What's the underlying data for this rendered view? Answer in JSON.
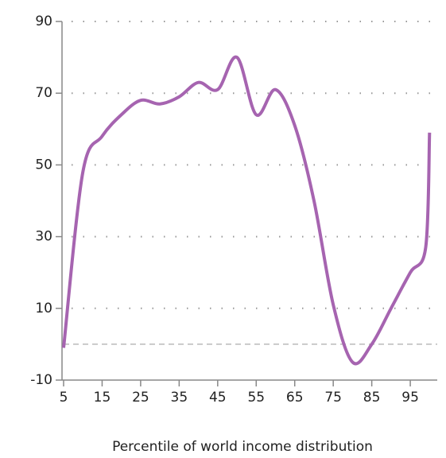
{
  "chart_data": {
    "type": "line",
    "x_label": "Percentile of world income distribution",
    "x": [
      5,
      10,
      15,
      20,
      25,
      30,
      35,
      40,
      45,
      50,
      55,
      60,
      65,
      70,
      75,
      80,
      85,
      90,
      95,
      99,
      100
    ],
    "series": [
      {
        "color": "#a664b0",
        "values": [
          -1,
          48,
          58,
          64,
          68,
          67,
          69,
          73,
          71,
          80,
          64,
          71,
          61,
          40,
          11,
          -5,
          0,
          10,
          20,
          27,
          59
        ]
      }
    ],
    "xlim": [
      5,
      102
    ],
    "xticks": [
      5,
      15,
      25,
      35,
      45,
      55,
      65,
      75,
      85,
      95
    ],
    "ylim": [
      -10,
      90
    ],
    "yticks": [
      -10,
      10,
      30,
      50,
      70,
      90
    ],
    "grid": true,
    "zero_line": true
  }
}
